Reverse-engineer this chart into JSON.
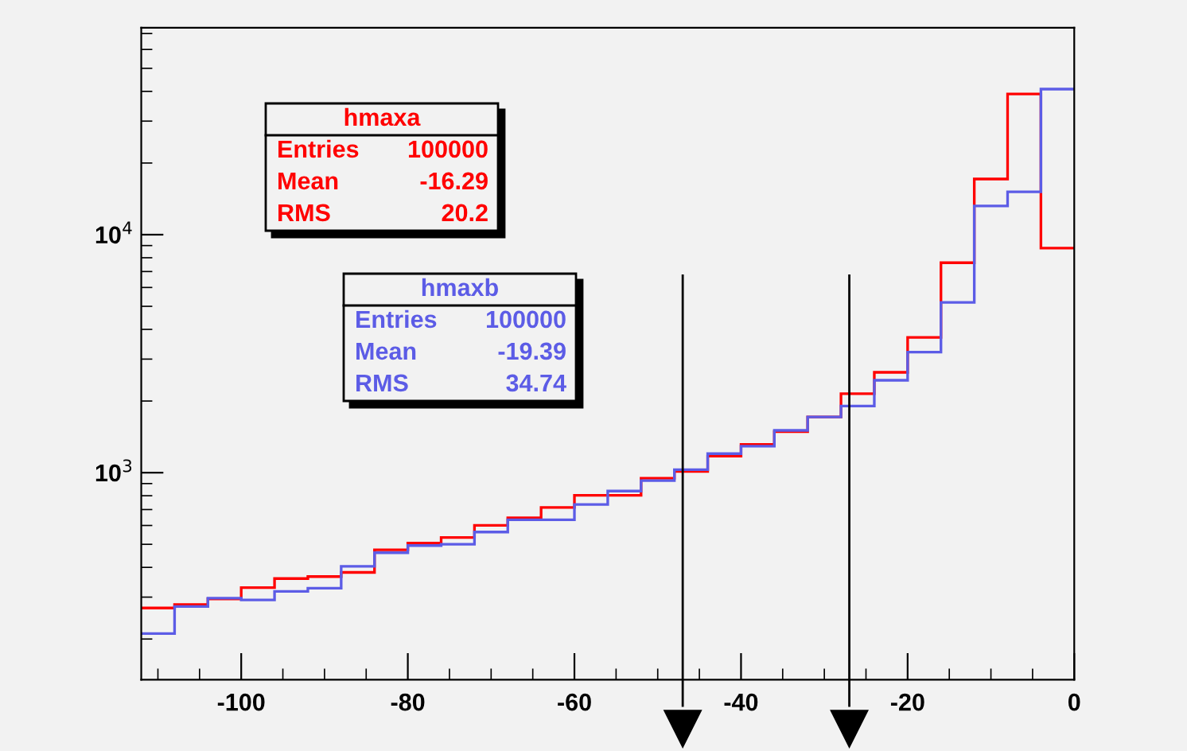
{
  "chart_data": {
    "type": "histogram",
    "bins": [
      -112,
      -108,
      -104,
      -100,
      -96,
      -92,
      -88,
      -84,
      -80,
      -76,
      -72,
      -68,
      -64,
      -60,
      -56,
      -52,
      -48,
      -44,
      -40,
      -36,
      -32,
      -28,
      -24,
      -20,
      -16,
      -12,
      -8,
      -4,
      0
    ],
    "series": [
      {
        "name": "hmaxa",
        "color": "#ff0000",
        "values": [
          270,
          279,
          295,
          329,
          359,
          366,
          381,
          474,
          506,
          534,
          601,
          646,
          714,
          803,
          803,
          948,
          1012,
          1173,
          1313,
          1486,
          1714,
          2147,
          2640,
          3700,
          7620,
          17140,
          39000,
          8780
        ]
      },
      {
        "name": "hmaxb",
        "color": "#5c5ce6",
        "values": [
          211,
          274,
          297,
          292,
          317,
          327,
          404,
          461,
          494,
          500,
          563,
          634,
          634,
          735,
          837,
          926,
          1030,
          1202,
          1291,
          1505,
          1714,
          1906,
          2445,
          3210,
          5190,
          13200,
          15130,
          40900
        ]
      }
    ],
    "annotations": [
      [
        "Entries",
        "100000",
        "Mean",
        "-16.29",
        "RMS",
        "20.2"
      ],
      [
        "Entries",
        "100000",
        "Mean",
        "-19.39",
        "RMS",
        "34.74"
      ]
    ],
    "log": "y",
    "xlim": [
      -112,
      0
    ],
    "ylim": [
      135,
      74000
    ],
    "xticks": [
      -100,
      -80,
      -60,
      -40,
      -20,
      0
    ],
    "yticks": [
      {
        "value": 1000,
        "label": "10$^{3}$"
      },
      {
        "value": 10000,
        "label": "10$^{4}$"
      }
    ],
    "ref_lines": [
      {
        "axis": "x",
        "value": -47,
        "color": "#000000"
      },
      {
        "axis": "x",
        "value": -27,
        "color": "#000000"
      }
    ],
    "grid": false,
    "legend": false
  }
}
